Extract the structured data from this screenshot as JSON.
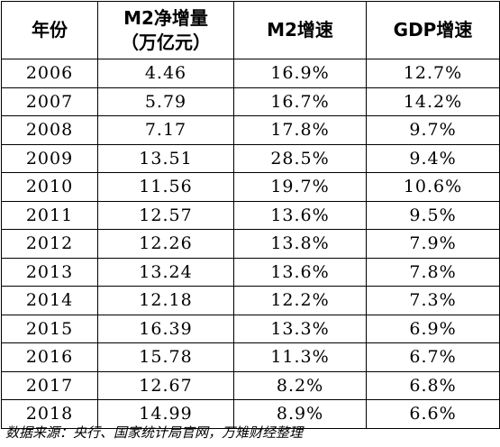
{
  "table": {
    "headers": {
      "year": "年份",
      "m2_increase_line1": "M2净增量",
      "m2_increase_line2": "（万亿元）",
      "m2_growth": "M2增速",
      "gdp_growth": "GDP增速"
    },
    "rows": [
      {
        "year": "2006",
        "m2_increase": "4.46",
        "m2_growth": "16.9%",
        "gdp_growth": "12.7%"
      },
      {
        "year": "2007",
        "m2_increase": "5.79",
        "m2_growth": "16.7%",
        "gdp_growth": "14.2%"
      },
      {
        "year": "2008",
        "m2_increase": "7.17",
        "m2_growth": "17.8%",
        "gdp_growth": "9.7%"
      },
      {
        "year": "2009",
        "m2_increase": "13.51",
        "m2_growth": "28.5%",
        "gdp_growth": "9.4%"
      },
      {
        "year": "2010",
        "m2_increase": "11.56",
        "m2_growth": "19.7%",
        "gdp_growth": "10.6%"
      },
      {
        "year": "2011",
        "m2_increase": "12.57",
        "m2_growth": "13.6%",
        "gdp_growth": "9.5%"
      },
      {
        "year": "2012",
        "m2_increase": "12.26",
        "m2_growth": "13.8%",
        "gdp_growth": "7.9%"
      },
      {
        "year": "2013",
        "m2_increase": "13.24",
        "m2_growth": "13.6%",
        "gdp_growth": "7.8%"
      },
      {
        "year": "2014",
        "m2_increase": "12.18",
        "m2_growth": "12.2%",
        "gdp_growth": "7.3%"
      },
      {
        "year": "2015",
        "m2_increase": "16.39",
        "m2_growth": "13.3%",
        "gdp_growth": "6.9%"
      },
      {
        "year": "2016",
        "m2_increase": "15.78",
        "m2_growth": "11.3%",
        "gdp_growth": "6.7%"
      },
      {
        "year": "2017",
        "m2_increase": "12.67",
        "m2_growth": "8.2%",
        "gdp_growth": "6.8%"
      },
      {
        "year": "2018",
        "m2_increase": "14.99",
        "m2_growth": "8.9%",
        "gdp_growth": "6.6%"
      }
    ]
  },
  "source_note": "数据来源：央行、国家统计局官网，万雉财经整理"
}
